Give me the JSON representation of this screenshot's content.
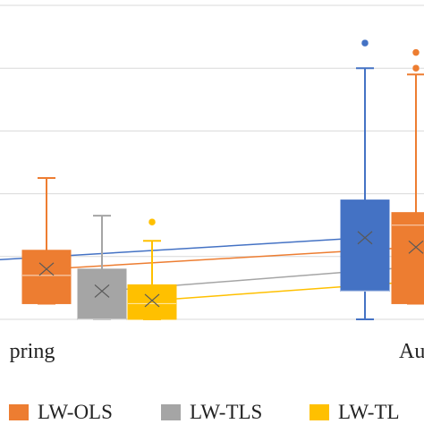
{
  "chart_data": {
    "type": "box",
    "title": "",
    "xlabel": "",
    "ylabel": "",
    "categories": [
      "Spring",
      "Autumn"
    ],
    "visible_category_labels": [
      "pring",
      "Au"
    ],
    "ylim": [
      0,
      100
    ],
    "grid": true,
    "legend_position": "bottom",
    "series": [
      {
        "name": "",
        "color": "#4472C4",
        "boxes": [
          null,
          {
            "min": 0,
            "q1": 9,
            "median": 9,
            "q3": 38,
            "max": 80,
            "mean": 26,
            "outliers": [
              88
            ]
          }
        ]
      },
      {
        "name": "LW-OLS",
        "color": "#ED7D31",
        "boxes": [
          {
            "min": 5,
            "q1": 5,
            "median": 14,
            "q3": 22,
            "max": 45,
            "mean": 16,
            "outliers": []
          },
          {
            "min": 5,
            "q1": 5,
            "median": 30,
            "q3": 34,
            "max": 78,
            "mean": 23,
            "outliers": [
              80,
              85
            ]
          }
        ]
      },
      {
        "name": "LW-TLS",
        "color": "#A5A5A5",
        "boxes": [
          {
            "min": 0,
            "q1": 0,
            "median": 0,
            "q3": 16,
            "max": 33,
            "mean": 9,
            "outliers": []
          },
          null
        ]
      },
      {
        "name": "LW-TLS",
        "color": "#FFC000",
        "boxes": [
          {
            "min": 0,
            "q1": 0,
            "median": 5,
            "q3": 11,
            "max": 25,
            "mean": 6,
            "outliers": [
              31
            ]
          },
          null
        ]
      }
    ],
    "mean_lines": [
      {
        "color": "#4472C4",
        "values": [
          19,
          26
        ]
      },
      {
        "color": "#ED7D31",
        "values": [
          16,
          23
        ]
      },
      {
        "color": "#A5A5A5",
        "values": [
          9,
          18
        ]
      },
      {
        "color": "#FFC000",
        "values": [
          6,
          14
        ]
      }
    ],
    "legend": [
      {
        "label": "LW-OLS",
        "color": "#ED7D31"
      },
      {
        "label": "LW-TLS",
        "color": "#A5A5A5"
      },
      {
        "label": "LW-TL",
        "color": "#FFC000"
      }
    ]
  }
}
